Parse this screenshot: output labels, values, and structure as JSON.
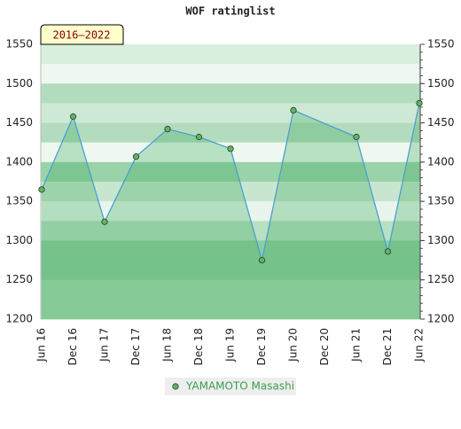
{
  "chart_data": {
    "type": "area-line",
    "title": "WOF ratinglist",
    "badge": "2016–2022",
    "categories": [
      "Jun 16",
      "Dec 16",
      "Jun 17",
      "Dec 17",
      "Jun 18",
      "Dec 18",
      "Jun 19",
      "Dec 19",
      "Jun 20",
      "Dec 20",
      "Jun 21",
      "Dec 21",
      "Jun 22"
    ],
    "series": [
      {
        "name": "YAMAMOTO Masashi",
        "color": "#4aa0d0",
        "marker_color": "#5cb85c",
        "x": [
          "Jun 16",
          "Dec 16",
          "Jun 17",
          "Dec 17",
          "Jun 18",
          "Dec 18",
          "Jun 19",
          "Dec 19",
          "Jun 20",
          "Jun 21",
          "Dec 21",
          "Jun 22"
        ],
        "values": [
          1365,
          1458,
          1324,
          1407,
          1442,
          1432,
          1417,
          1275,
          1466,
          1432,
          1286,
          1475
        ]
      }
    ],
    "ylim": [
      1200,
      1550
    ],
    "yticks": [
      1200,
      1250,
      1300,
      1350,
      1400,
      1450,
      1500,
      1550
    ]
  }
}
